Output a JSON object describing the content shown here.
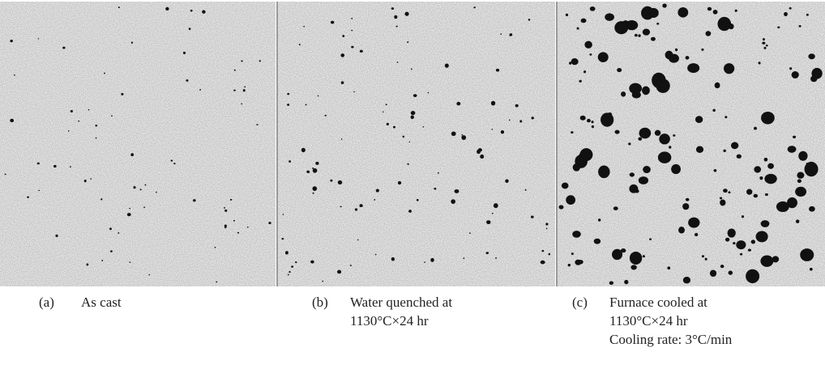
{
  "figure": {
    "panels": [
      {
        "label": "(a)",
        "caption": [
          "As cast"
        ]
      },
      {
        "label": "(b)",
        "caption": [
          "Water quenched at",
          "1130°C×24 hr"
        ]
      },
      {
        "label": "(c)",
        "caption": [
          "Furnace cooled at",
          "1130°C×24 hr",
          "Cooling rate: 3°C/min"
        ]
      }
    ]
  }
}
